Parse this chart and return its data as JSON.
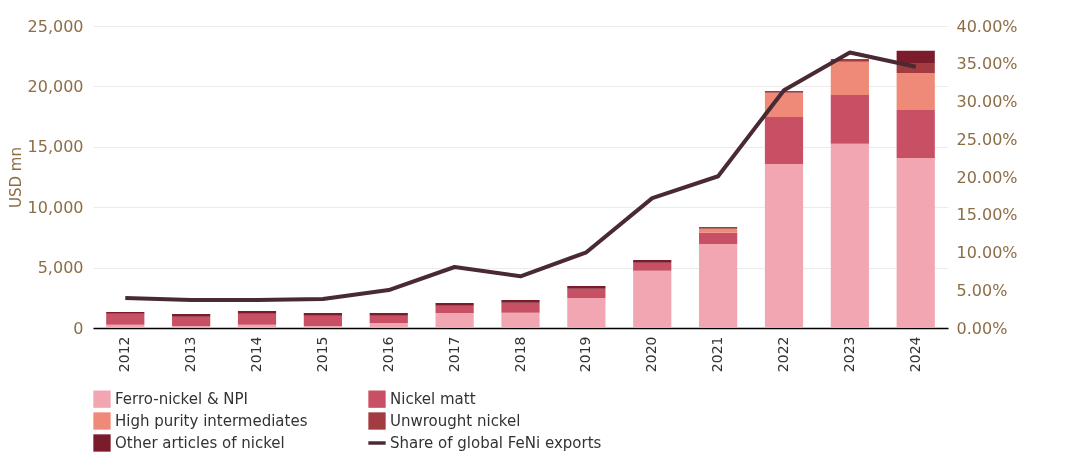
{
  "chart_data": {
    "type": "bar",
    "stacked": true,
    "ylabel": "USD mn",
    "categories": [
      "2012",
      "2013",
      "2014",
      "2015",
      "2016",
      "2017",
      "2018",
      "2019",
      "2020",
      "2021",
      "2022",
      "2023",
      "2024"
    ],
    "ylim": [
      0,
      25000
    ],
    "yticks": [
      {
        "value": 0,
        "label": "0"
      },
      {
        "value": 5000,
        "label": "5,000"
      },
      {
        "value": 10000,
        "label": "10,000"
      },
      {
        "value": 15000,
        "label": "15,000"
      },
      {
        "value": 20000,
        "label": "20,000"
      },
      {
        "value": 25000,
        "label": "25,000"
      }
    ],
    "y2lim": [
      0,
      40
    ],
    "y2ticks": [
      {
        "value": 0,
        "label": "0.00%"
      },
      {
        "value": 5,
        "label": "5.00%"
      },
      {
        "value": 10,
        "label": "10.00%"
      },
      {
        "value": 15,
        "label": "15.00%"
      },
      {
        "value": 20,
        "label": "20.00%"
      },
      {
        "value": 25,
        "label": "25.00%"
      },
      {
        "value": 30,
        "label": "30.00%"
      },
      {
        "value": 35,
        "label": "35.00%"
      },
      {
        "value": 40,
        "label": "40.00%"
      }
    ],
    "grid": "y",
    "legend": "bottom",
    "line_style": "solid",
    "marker": "none",
    "series": [
      {
        "name": "Ferro-nickel & NPI",
        "color": "#f2a6b2",
        "values": [
          270,
          170,
          270,
          170,
          410,
          1240,
          1270,
          2480,
          4740,
          6950,
          13580,
          15260,
          14070
        ]
      },
      {
        "name": "Nickel matt",
        "color": "#c85064",
        "values": [
          910,
          770,
          910,
          850,
          610,
          610,
          830,
          770,
          670,
          940,
          3890,
          4030,
          3980
        ]
      },
      {
        "name": "High purity intermediates",
        "color": "#f08a78",
        "values": [
          null,
          null,
          null,
          null,
          null,
          null,
          null,
          null,
          null,
          330,
          2010,
          2760,
          3060
        ]
      },
      {
        "name": "Unwrought nickel",
        "color": "#a33c40",
        "values": [
          null,
          null,
          null,
          null,
          null,
          null,
          null,
          null,
          null,
          140,
          140,
          220,
          830
        ]
      },
      {
        "name": "Other articles of nickel",
        "color": "#7a1c2c",
        "values": [
          140,
          220,
          230,
          220,
          220,
          220,
          220,
          230,
          220,
          null,
          null,
          null,
          1020
        ]
      },
      {
        "name": "Share of global FeNi exports",
        "color": "#4a2a32",
        "type": "line",
        "axis": "y2",
        "values": [
          3.97,
          3.71,
          3.71,
          3.84,
          5.03,
          8.08,
          6.85,
          10.03,
          17.2,
          20.1,
          31.5,
          36.5,
          34.6
        ]
      }
    ]
  }
}
